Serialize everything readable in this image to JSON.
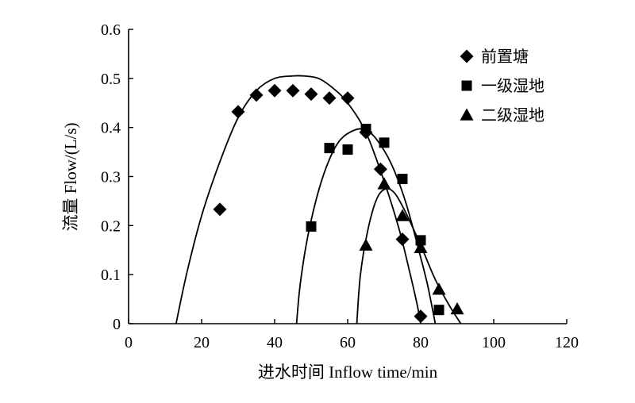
{
  "chart_data": {
    "type": "scatter",
    "title": "",
    "xlabel": "进水时间 Inflow time/min",
    "ylabel": "流量 Flow/(L/s)",
    "xlim": [
      0,
      120
    ],
    "ylim": [
      0,
      0.6
    ],
    "xticks": [
      0,
      20,
      40,
      60,
      80,
      100,
      120
    ],
    "yticks": [
      0,
      0.1,
      0.2,
      0.3,
      0.4,
      0.5,
      0.6
    ],
    "xtick_labels": [
      "0",
      "20",
      "40",
      "60",
      "80",
      "100",
      "120"
    ],
    "ytick_labels": [
      "0",
      "0.1",
      "0.2",
      "0.3",
      "0.4",
      "0.5",
      "0.6"
    ],
    "grid": false,
    "legend_position": "top-right",
    "series": [
      {
        "name": "前置塘",
        "marker": "diamond",
        "points": [
          [
            25,
            0.233
          ],
          [
            30,
            0.432
          ],
          [
            35,
            0.466
          ],
          [
            40,
            0.475
          ],
          [
            45,
            0.475
          ],
          [
            50,
            0.468
          ],
          [
            55,
            0.46
          ],
          [
            60,
            0.46
          ],
          [
            65,
            0.39
          ],
          [
            69,
            0.315
          ],
          [
            75,
            0.172
          ],
          [
            80,
            0.015
          ]
        ],
        "fit_curve": [
          [
            13,
            0
          ],
          [
            16,
            0.105
          ],
          [
            20,
            0.22
          ],
          [
            25,
            0.33
          ],
          [
            30,
            0.42
          ],
          [
            35,
            0.475
          ],
          [
            40,
            0.5
          ],
          [
            45,
            0.505
          ],
          [
            48,
            0.505
          ],
          [
            52,
            0.5
          ],
          [
            56,
            0.48
          ],
          [
            60,
            0.45
          ],
          [
            65,
            0.39
          ],
          [
            70,
            0.29
          ],
          [
            74,
            0.195
          ],
          [
            77,
            0.105
          ],
          [
            79,
            0.04
          ],
          [
            80,
            0
          ]
        ]
      },
      {
        "name": "一级湿地",
        "marker": "square",
        "points": [
          [
            50,
            0.198
          ],
          [
            55,
            0.358
          ],
          [
            60,
            0.355
          ],
          [
            65,
            0.397
          ],
          [
            70,
            0.369
          ],
          [
            75,
            0.295
          ],
          [
            80,
            0.17
          ],
          [
            85,
            0.028
          ]
        ],
        "fit_curve": [
          [
            46,
            0
          ],
          [
            47,
            0.08
          ],
          [
            49,
            0.175
          ],
          [
            52,
            0.27
          ],
          [
            55,
            0.335
          ],
          [
            58,
            0.375
          ],
          [
            62,
            0.395
          ],
          [
            65,
            0.395
          ],
          [
            68,
            0.375
          ],
          [
            72,
            0.325
          ],
          [
            76,
            0.245
          ],
          [
            80,
            0.135
          ],
          [
            82,
            0.075
          ],
          [
            84,
            0
          ]
        ]
      },
      {
        "name": "二级湿地",
        "marker": "triangle",
        "points": [
          [
            65,
            0.16
          ],
          [
            70,
            0.285
          ],
          [
            75,
            0.22
          ],
          [
            80,
            0.155
          ],
          [
            85,
            0.07
          ],
          [
            90,
            0.03
          ]
        ],
        "fit_curve": [
          [
            62.5,
            0
          ],
          [
            63.5,
            0.1
          ],
          [
            65.5,
            0.19
          ],
          [
            68,
            0.255
          ],
          [
            70.5,
            0.275
          ],
          [
            73,
            0.265
          ],
          [
            76,
            0.225
          ],
          [
            80,
            0.16
          ],
          [
            84,
            0.09
          ],
          [
            88,
            0.035
          ],
          [
            91,
            0
          ]
        ]
      }
    ]
  }
}
